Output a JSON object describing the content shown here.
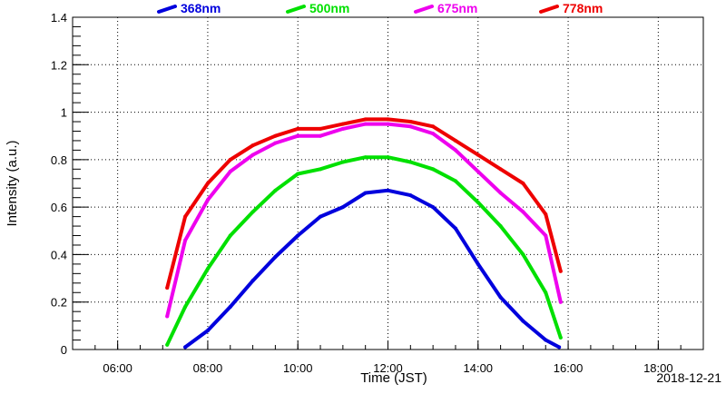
{
  "chart_data": {
    "type": "line",
    "title": "",
    "xlabel": "Time (JST)",
    "ylabel": "Intensity (a.u.)",
    "date": "2018-12-21",
    "xlim": [
      "05:00",
      "19:00"
    ],
    "ylim": [
      0,
      1.4
    ],
    "grid": true,
    "legend_position": "top",
    "x_ticks": [
      "06:00",
      "08:00",
      "10:00",
      "12:00",
      "14:00",
      "16:00",
      "18:00"
    ],
    "y_ticks": [
      "0",
      "0.2",
      "0.4",
      "0.6",
      "0.8",
      "1",
      "1.2",
      "1.4"
    ],
    "series": [
      {
        "name": "368nm",
        "color": "#0000dd",
        "x": [
          "07:30",
          "08:00",
          "08:30",
          "09:00",
          "09:30",
          "10:00",
          "10:30",
          "11:00",
          "11:30",
          "12:00",
          "12:30",
          "13:00",
          "13:30",
          "14:00",
          "14:30",
          "15:00",
          "15:30",
          "15:48"
        ],
        "values": [
          0.01,
          0.08,
          0.18,
          0.29,
          0.39,
          0.48,
          0.56,
          0.6,
          0.66,
          0.67,
          0.65,
          0.6,
          0.51,
          0.36,
          0.22,
          0.12,
          0.04,
          0.01
        ]
      },
      {
        "name": "500nm",
        "color": "#00e000",
        "x": [
          "07:06",
          "07:30",
          "08:00",
          "08:30",
          "09:00",
          "09:30",
          "10:00",
          "10:30",
          "11:00",
          "11:30",
          "12:00",
          "12:30",
          "13:00",
          "13:30",
          "14:00",
          "14:30",
          "15:00",
          "15:30",
          "15:50"
        ],
        "values": [
          0.02,
          0.18,
          0.34,
          0.48,
          0.58,
          0.67,
          0.74,
          0.76,
          0.79,
          0.81,
          0.81,
          0.79,
          0.76,
          0.71,
          0.62,
          0.52,
          0.4,
          0.24,
          0.05
        ]
      },
      {
        "name": "675nm",
        "color": "#ee00ee",
        "x": [
          "07:06",
          "07:30",
          "08:00",
          "08:30",
          "09:00",
          "09:30",
          "10:00",
          "10:30",
          "11:00",
          "11:30",
          "12:00",
          "12:30",
          "13:00",
          "13:30",
          "14:00",
          "14:30",
          "15:00",
          "15:30",
          "15:50"
        ],
        "values": [
          0.14,
          0.46,
          0.63,
          0.75,
          0.82,
          0.87,
          0.9,
          0.9,
          0.93,
          0.95,
          0.95,
          0.94,
          0.91,
          0.84,
          0.75,
          0.66,
          0.58,
          0.48,
          0.2
        ]
      },
      {
        "name": "778nm",
        "color": "#ee0000",
        "x": [
          "07:06",
          "07:30",
          "08:00",
          "08:30",
          "09:00",
          "09:30",
          "10:00",
          "10:30",
          "11:00",
          "11:30",
          "12:00",
          "12:30",
          "13:00",
          "13:30",
          "14:00",
          "14:30",
          "15:00",
          "15:30",
          "15:50"
        ],
        "values": [
          0.26,
          0.56,
          0.7,
          0.8,
          0.86,
          0.9,
          0.93,
          0.93,
          0.95,
          0.97,
          0.97,
          0.96,
          0.94,
          0.88,
          0.82,
          0.76,
          0.7,
          0.57,
          0.33
        ]
      }
    ]
  }
}
